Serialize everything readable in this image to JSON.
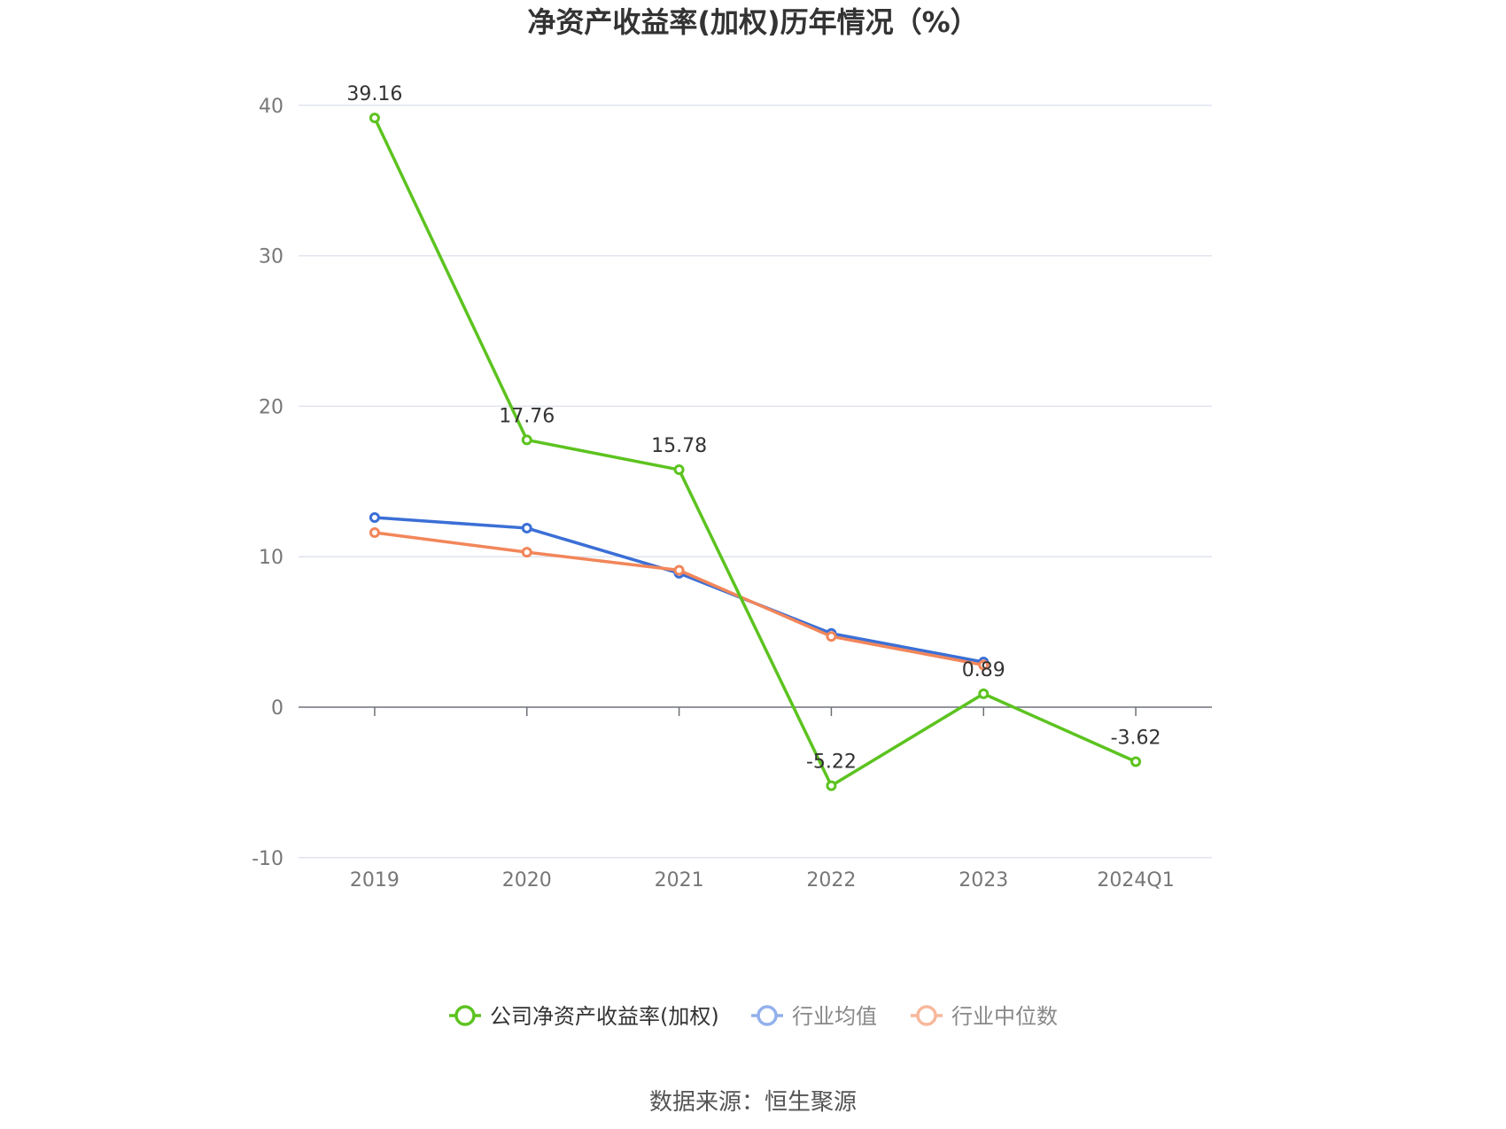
{
  "chart_data": {
    "type": "line",
    "title": "净资产收益率(加权)历年情况（%）",
    "categories": [
      "2019",
      "2020",
      "2021",
      "2022",
      "2023",
      "2024Q1"
    ],
    "yticks": [
      40,
      30,
      20,
      10,
      0,
      -10
    ],
    "ylim": [
      -10,
      40
    ],
    "grid": true,
    "legend_position": "bottom",
    "series": [
      {
        "name": "公司净资产收益率(加权)",
        "color": "#5cc31f",
        "values": [
          39.16,
          17.76,
          15.78,
          -5.22,
          0.89,
          -3.62
        ],
        "labels": [
          "39.16",
          "17.76",
          "15.78",
          "-5.22",
          "0.89",
          "-3.62"
        ]
      },
      {
        "name": "行业均值",
        "color": "#3b6fd6",
        "legend_color": "#92b0ec",
        "values": [
          12.6,
          11.9,
          8.9,
          4.9,
          3.0,
          null
        ]
      },
      {
        "name": "行业中位数",
        "color": "#f2865a",
        "legend_color": "#f7b89c",
        "values": [
          11.6,
          10.3,
          9.1,
          4.7,
          2.8,
          null
        ]
      }
    ]
  },
  "source_text": "数据来源：恒生聚源"
}
